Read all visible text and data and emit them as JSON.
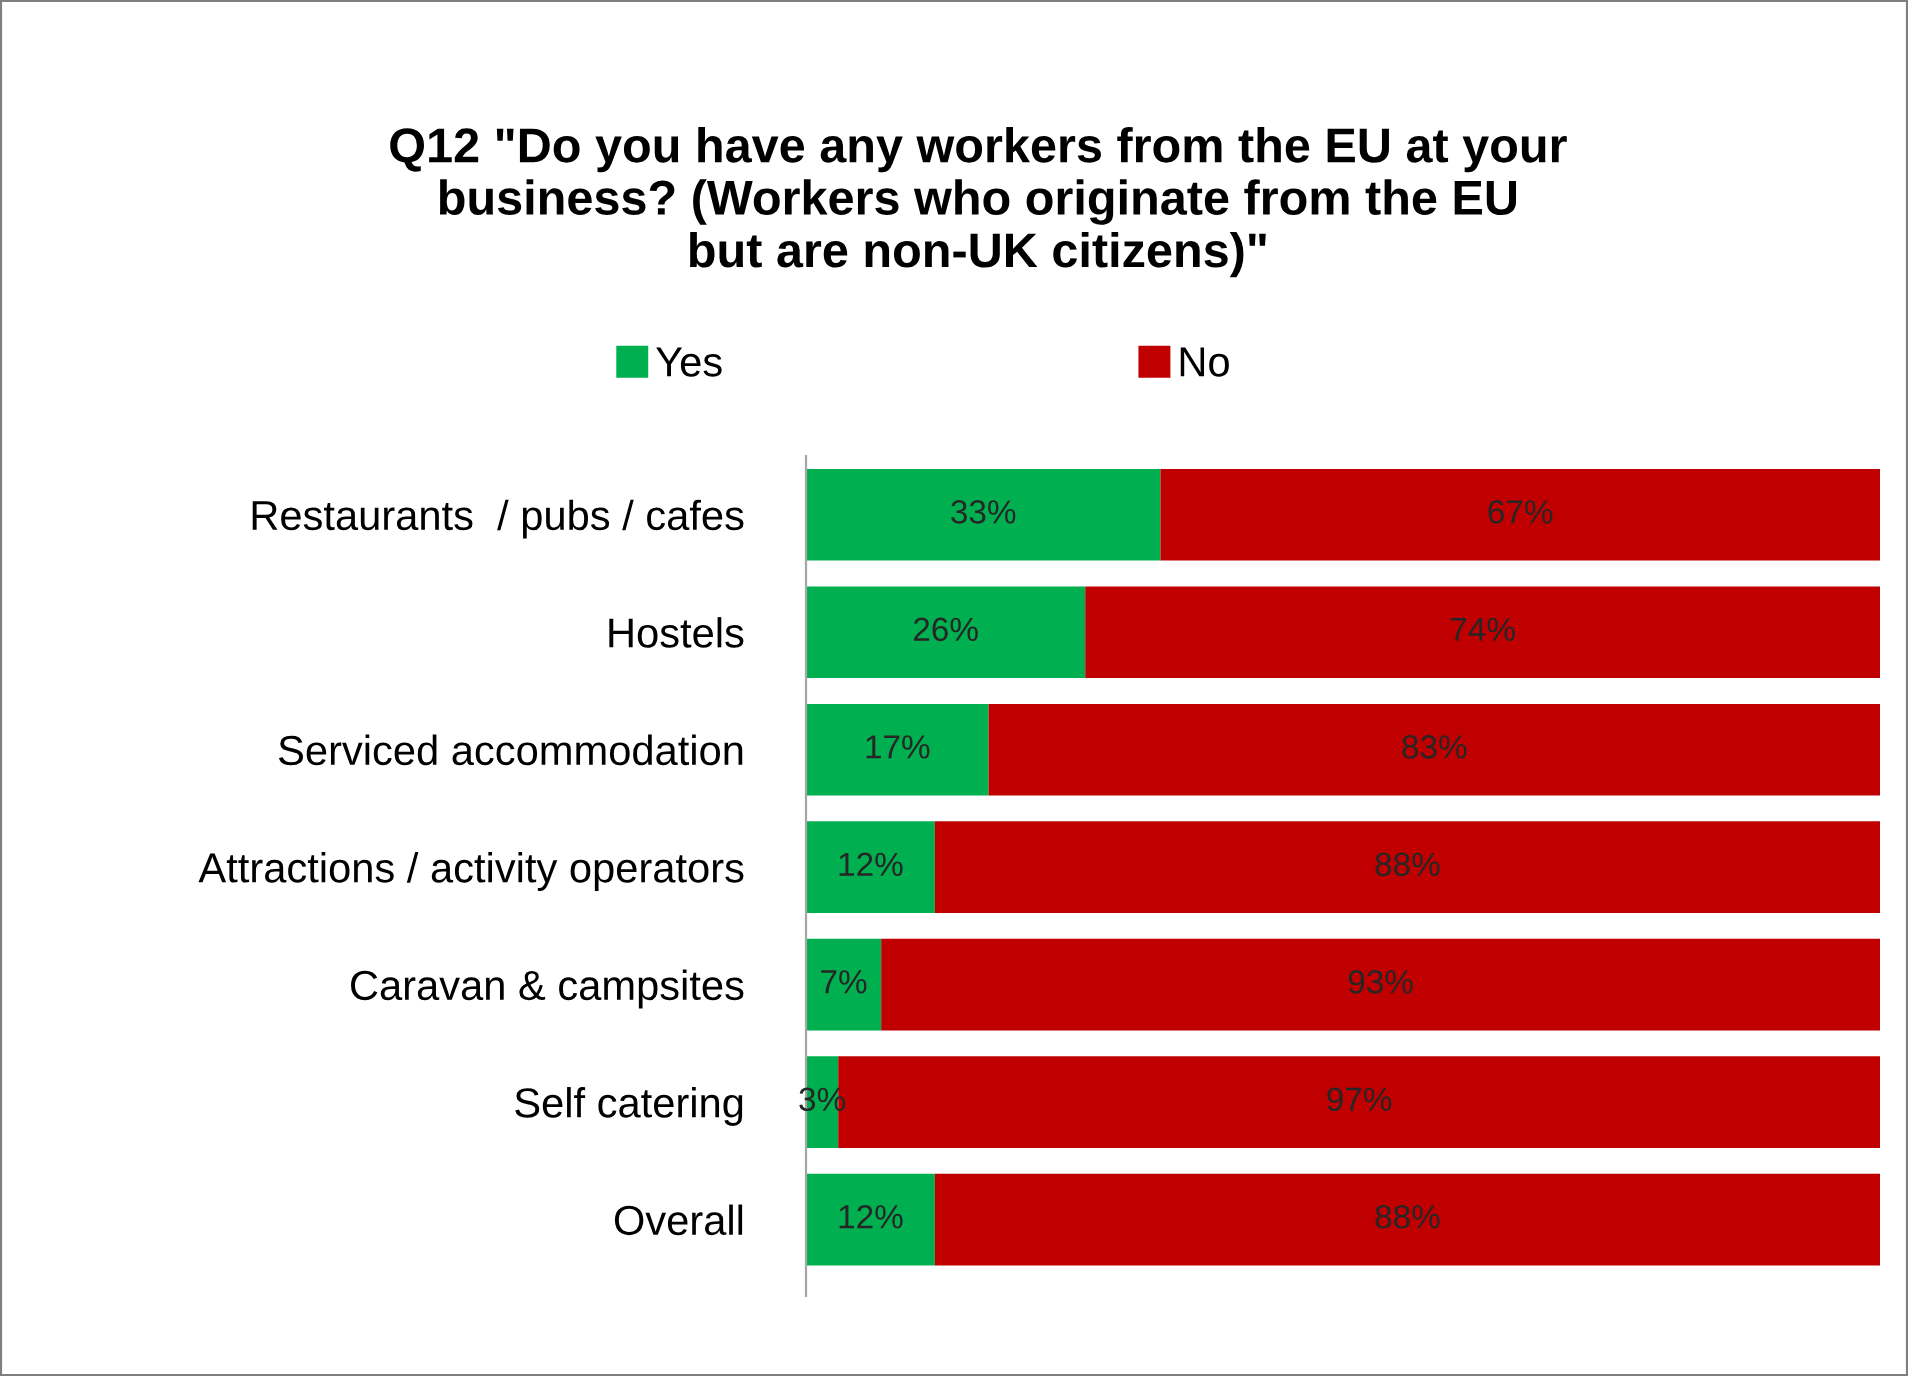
{
  "chart_data": {
    "type": "bar",
    "orientation": "horizontal",
    "stacked": true,
    "title": "Q12 \"Do you have any workers from the EU at your\nbusiness? (Workers who originate from the EU\nbut are non-UK citizens)\"",
    "categories": [
      "Restaurants  / pubs / cafes",
      "Hostels",
      "Serviced accommodation",
      "Attractions / activity operators",
      "Caravan & campsites",
      "Self catering",
      "Overall"
    ],
    "series": [
      {
        "name": "Yes",
        "color": "#00b050",
        "values": [
          33,
          26,
          17,
          12,
          7,
          3,
          12
        ],
        "value_labels": [
          "33%",
          "26%",
          "17%",
          "12%",
          "7%",
          "3%",
          "12%"
        ]
      },
      {
        "name": "No",
        "color": "#c00000",
        "values": [
          67,
          74,
          83,
          88,
          93,
          97,
          88
        ],
        "value_labels": [
          "67%",
          "74%",
          "83%",
          "88%",
          "93%",
          "97%",
          "88%"
        ]
      }
    ],
    "legend": "top",
    "tick_labels": "y"
  }
}
